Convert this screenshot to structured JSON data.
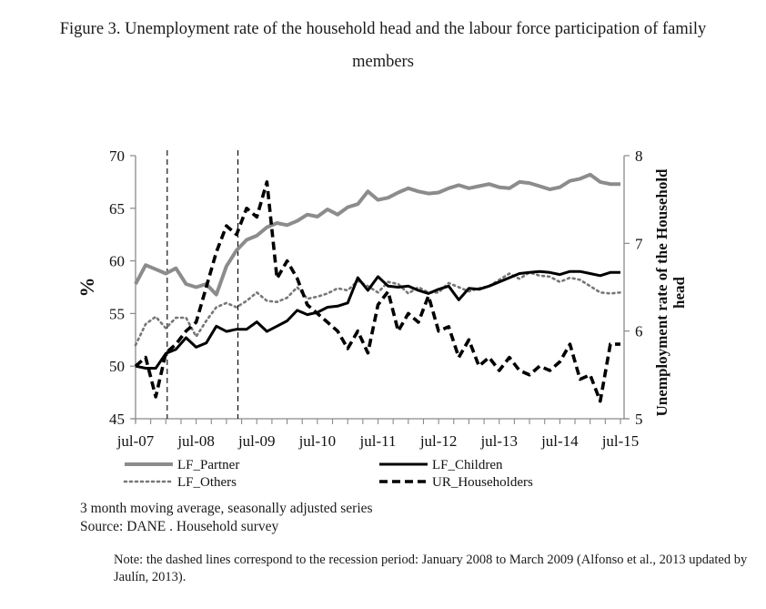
{
  "figure": {
    "title_line1": "Figure 3. Unemployment rate of the household head and the labour force participation of family",
    "title_line2": "members",
    "notes_line1": "3 month moving average, seasonally adjusted series",
    "notes_line2": "Source: DANE . Household survey",
    "footnote": "Note: the dashed lines correspond to the recession period: January 2008 to March 2009 (Alfonso et al., 2013 updated by Jaulín, 2013)."
  },
  "chart_data": {
    "type": "line",
    "title": "",
    "xlabel": "",
    "ylabel": "%",
    "y2label": "Unemployment  rate of the Household head",
    "ylim": [
      45,
      70
    ],
    "y2lim": [
      5,
      8
    ],
    "yticks": [
      "45",
      "50",
      "55",
      "60",
      "65",
      "70"
    ],
    "y2ticks": [
      "5",
      "6",
      "7",
      "8"
    ],
    "x_tick_labels": [
      "jul-07",
      "jul-08",
      "jul-09",
      "jul-10",
      "jul-11",
      "jul-12",
      "jul-13",
      "jul-14",
      "jul-15"
    ],
    "x_unit": "months since jul-07",
    "x_range": [
      0,
      96
    ],
    "grid": false,
    "legend_position": "bottom",
    "recession_markers": [
      "jan-08",
      "mar-09"
    ],
    "recession_months": [
      6,
      20
    ],
    "x": [
      0,
      2,
      4,
      6,
      8,
      10,
      12,
      14,
      16,
      18,
      20,
      22,
      24,
      26,
      28,
      30,
      32,
      34,
      36,
      38,
      40,
      42,
      44,
      46,
      48,
      50,
      52,
      54,
      56,
      58,
      60,
      62,
      64,
      66,
      68,
      70,
      72,
      74,
      76,
      78,
      80,
      82,
      84,
      86,
      88,
      90,
      92,
      94,
      96
    ],
    "series": [
      {
        "name": "LF_Partner",
        "axis": "left",
        "color": "#8c8c8c",
        "style": "solid",
        "values": [
          57.8,
          59.6,
          59.2,
          58.8,
          59.3,
          57.8,
          57.5,
          57.8,
          56.8,
          59.5,
          61.0,
          62.0,
          62.4,
          63.2,
          63.6,
          63.4,
          63.8,
          64.4,
          64.2,
          64.9,
          64.4,
          65.1,
          65.4,
          66.6,
          65.8,
          66.0,
          66.5,
          66.9,
          66.6,
          66.4,
          66.5,
          66.9,
          67.2,
          66.9,
          67.1,
          67.3,
          67.0,
          66.9,
          67.5,
          67.4,
          67.1,
          66.8,
          67.0,
          67.6,
          67.8,
          68.2,
          67.5,
          67.3,
          67.3
        ]
      },
      {
        "name": "LF_Children",
        "axis": "left",
        "color": "#000000",
        "style": "solid",
        "values": [
          50.0,
          49.8,
          49.8,
          51.2,
          51.6,
          52.7,
          51.8,
          52.2,
          53.8,
          53.3,
          53.5,
          53.5,
          54.2,
          53.3,
          53.8,
          54.3,
          55.3,
          54.9,
          55.1,
          55.6,
          55.7,
          56.0,
          58.4,
          57.2,
          58.5,
          57.6,
          57.5,
          57.6,
          57.2,
          56.9,
          57.3,
          57.6,
          56.3,
          57.4,
          57.3,
          57.6,
          58.0,
          58.4,
          58.8,
          58.9,
          59.0,
          58.9,
          58.7,
          59.0,
          59.0,
          58.8,
          58.6,
          58.9,
          58.9
        ]
      },
      {
        "name": "LF_Others",
        "axis": "left",
        "color": "#777777",
        "style": "dotted",
        "values": [
          52.0,
          54.0,
          54.7,
          53.6,
          54.6,
          54.6,
          52.8,
          54.3,
          55.6,
          56.0,
          55.6,
          56.2,
          57.0,
          56.2,
          56.1,
          56.5,
          57.5,
          56.4,
          56.6,
          56.9,
          57.4,
          57.2,
          58.1,
          57.6,
          57.0,
          58.0,
          57.8,
          56.9,
          57.5,
          57.0,
          57.0,
          57.9,
          57.5,
          57.1,
          57.4,
          57.6,
          58.2,
          58.8,
          58.3,
          58.9,
          58.6,
          58.5,
          58.0,
          58.4,
          58.2,
          57.6,
          57.0,
          56.9,
          57.0
        ]
      },
      {
        "name": "UR_Householders",
        "axis": "right",
        "color": "#000000",
        "style": "dashed",
        "values": [
          5.6,
          5.7,
          5.25,
          5.75,
          5.85,
          6.0,
          6.1,
          6.5,
          6.9,
          7.2,
          7.1,
          7.4,
          7.3,
          7.7,
          6.6,
          6.8,
          6.6,
          6.3,
          6.2,
          6.1,
          6.0,
          5.8,
          6.0,
          5.75,
          6.3,
          6.45,
          6.0,
          6.2,
          6.1,
          6.4,
          6.0,
          6.05,
          5.7,
          5.9,
          5.6,
          5.7,
          5.55,
          5.7,
          5.55,
          5.5,
          5.6,
          5.55,
          5.65,
          5.85,
          5.45,
          5.5,
          5.2,
          5.85,
          5.85
        ]
      }
    ]
  }
}
